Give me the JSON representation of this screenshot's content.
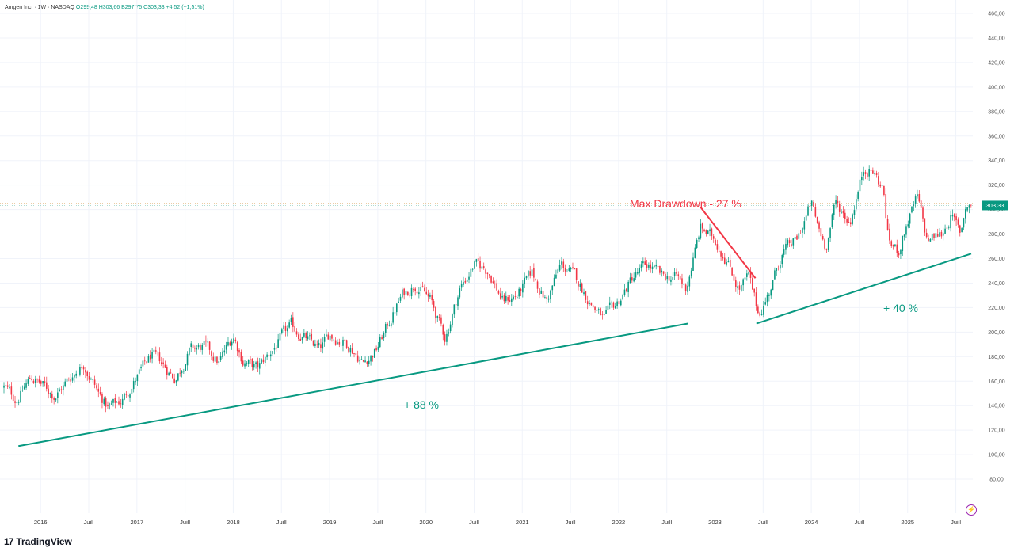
{
  "header": {
    "symbol": "Amgen Inc. · 1W · NASDAQ",
    "open": "O299,48",
    "high": "H303,66",
    "low": "B297,75",
    "close": "C303,33",
    "change": "+4,52 (+1,51%)"
  },
  "brand": {
    "name": "TradingView",
    "mark": "17"
  },
  "price_badge": "303,33",
  "annotations": {
    "drawdown": "Max Drawdown - 27 %",
    "gain1": "+ 88 %",
    "gain2": "+ 40 %"
  },
  "colors": {
    "up": "#089981",
    "down": "#f23645",
    "trend": "#089981",
    "drawdown": "#f23645"
  },
  "icons": {
    "logo": "tradingview-logo-icon",
    "alert": "lightning-icon"
  },
  "chart_data": {
    "type": "candlestick",
    "title": "Amgen Inc. · 1W · NASDAQ",
    "ylim": [
      68,
      466
    ],
    "y_ticks": [
      "460,00",
      "440,00",
      "420,00",
      "400,00",
      "380,00",
      "360,00",
      "340,00",
      "320,00",
      "300,00",
      "280,00",
      "260,00",
      "240,00",
      "220,00",
      "200,00",
      "180,00",
      "160,00",
      "140,00",
      "120,00",
      "100,00",
      "80,00"
    ],
    "x_ticks": [
      {
        "label": "2016",
        "t": 2016.0
      },
      {
        "label": "Juill",
        "t": 2016.5
      },
      {
        "label": "2017",
        "t": 2017.0
      },
      {
        "label": "Juill",
        "t": 2017.5
      },
      {
        "label": "2018",
        "t": 2018.0
      },
      {
        "label": "Juill",
        "t": 2018.5
      },
      {
        "label": "2019",
        "t": 2019.0
      },
      {
        "label": "Juill",
        "t": 2019.5
      },
      {
        "label": "2020",
        "t": 2020.0
      },
      {
        "label": "Juill",
        "t": 2020.5
      },
      {
        "label": "2021",
        "t": 2021.0
      },
      {
        "label": "Juill",
        "t": 2021.5
      },
      {
        "label": "2022",
        "t": 2022.0
      },
      {
        "label": "Juill",
        "t": 2022.5
      },
      {
        "label": "2023",
        "t": 2023.0
      },
      {
        "label": "Juill",
        "t": 2023.5
      },
      {
        "label": "2024",
        "t": 2024.0
      },
      {
        "label": "Juill",
        "t": 2024.5
      },
      {
        "label": "2025",
        "t": 2025.0
      },
      {
        "label": "Juill",
        "t": 2025.5
      }
    ],
    "anchors": [
      [
        2015.62,
        155
      ],
      [
        2015.75,
        145
      ],
      [
        2015.9,
        163
      ],
      [
        2016.0,
        158
      ],
      [
        2016.15,
        148
      ],
      [
        2016.3,
        162
      ],
      [
        2016.45,
        175
      ],
      [
        2016.6,
        150
      ],
      [
        2016.7,
        138
      ],
      [
        2016.85,
        145
      ],
      [
        2017.0,
        163
      ],
      [
        2017.15,
        181
      ],
      [
        2017.25,
        175
      ],
      [
        2017.4,
        162
      ],
      [
        2017.55,
        185
      ],
      [
        2017.7,
        188
      ],
      [
        2017.85,
        175
      ],
      [
        2018.0,
        197
      ],
      [
        2018.1,
        177
      ],
      [
        2018.25,
        170
      ],
      [
        2018.45,
        190
      ],
      [
        2018.6,
        205
      ],
      [
        2018.75,
        195
      ],
      [
        2018.9,
        185
      ],
      [
        2019.0,
        198
      ],
      [
        2019.2,
        190
      ],
      [
        2019.35,
        175
      ],
      [
        2019.48,
        185
      ],
      [
        2019.6,
        205
      ],
      [
        2019.75,
        230
      ],
      [
        2019.9,
        240
      ],
      [
        2020.05,
        225
      ],
      [
        2020.2,
        195
      ],
      [
        2020.35,
        235
      ],
      [
        2020.5,
        255
      ],
      [
        2020.65,
        250
      ],
      [
        2020.8,
        225
      ],
      [
        2020.95,
        230
      ],
      [
        2021.1,
        248
      ],
      [
        2021.25,
        225
      ],
      [
        2021.4,
        255
      ],
      [
        2021.55,
        245
      ],
      [
        2021.7,
        225
      ],
      [
        2021.85,
        210
      ],
      [
        2022.0,
        225
      ],
      [
        2022.15,
        245
      ],
      [
        2022.3,
        255
      ],
      [
        2022.45,
        245
      ],
      [
        2022.6,
        245
      ],
      [
        2022.7,
        235
      ],
      [
        2022.85,
        285
      ],
      [
        2023.0,
        275
      ],
      [
        2023.12,
        260
      ],
      [
        2023.25,
        235
      ],
      [
        2023.35,
        245
      ],
      [
        2023.45,
        215
      ],
      [
        2023.55,
        230
      ],
      [
        2023.7,
        265
      ],
      [
        2023.85,
        275
      ],
      [
        2024.0,
        305
      ],
      [
        2024.05,
        290
      ],
      [
        2024.15,
        270
      ],
      [
        2024.25,
        305
      ],
      [
        2024.4,
        290
      ],
      [
        2024.55,
        335
      ],
      [
        2024.65,
        330
      ],
      [
        2024.75,
        315
      ],
      [
        2024.8,
        275
      ],
      [
        2024.9,
        265
      ],
      [
        2025.0,
        290
      ],
      [
        2025.1,
        310
      ],
      [
        2025.2,
        275
      ],
      [
        2025.35,
        280
      ],
      [
        2025.45,
        295
      ],
      [
        2025.55,
        280
      ],
      [
        2025.6,
        303.33
      ]
    ],
    "lines": [
      {
        "name": "trend1",
        "from": [
          2015.77,
          107
        ],
        "to": [
          2022.72,
          207
        ],
        "color": "#089981"
      },
      {
        "name": "trend2",
        "from": [
          2023.43,
          207
        ],
        "to": [
          2025.66,
          264
        ],
        "color": "#089981"
      },
      {
        "name": "drawdown",
        "from": [
          2022.85,
          302
        ],
        "to": [
          2023.42,
          244
        ],
        "color": "#f23645"
      }
    ],
    "last_price": 303.33
  }
}
